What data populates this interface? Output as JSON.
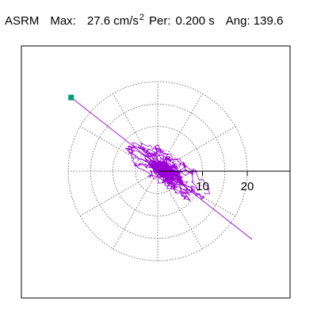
{
  "header": {
    "title": "ASRM",
    "max_label": "Max:",
    "max_value": "27.6",
    "max_unit": "cm/s",
    "max_exp": "2",
    "per_label": "Per:",
    "per_value": "0.200 s",
    "ang_label": "Ang:",
    "ang_value": "139.6"
  },
  "chart_data": {
    "type": "line",
    "title": "ASRM Max: 27.6 cm/s2 Per: 0.200 s Ang: 139.6",
    "plot_kind": "polar orbit (particle motion)",
    "radial_ticks": [
      "10",
      "20"
    ],
    "radial_tick_values": [
      10,
      20
    ],
    "radial_rings": [
      5,
      10,
      15,
      20
    ],
    "radial_max": 27.6,
    "spoke_angles_deg": [
      0,
      30,
      60,
      90,
      120,
      150,
      180,
      210,
      240,
      270,
      300,
      330
    ],
    "grid": "dotted",
    "marker_color": "#009a76",
    "trace_color": "#9b00d6",
    "peak_angle_deg": 139.6,
    "peak_amplitude": 27.6
  }
}
